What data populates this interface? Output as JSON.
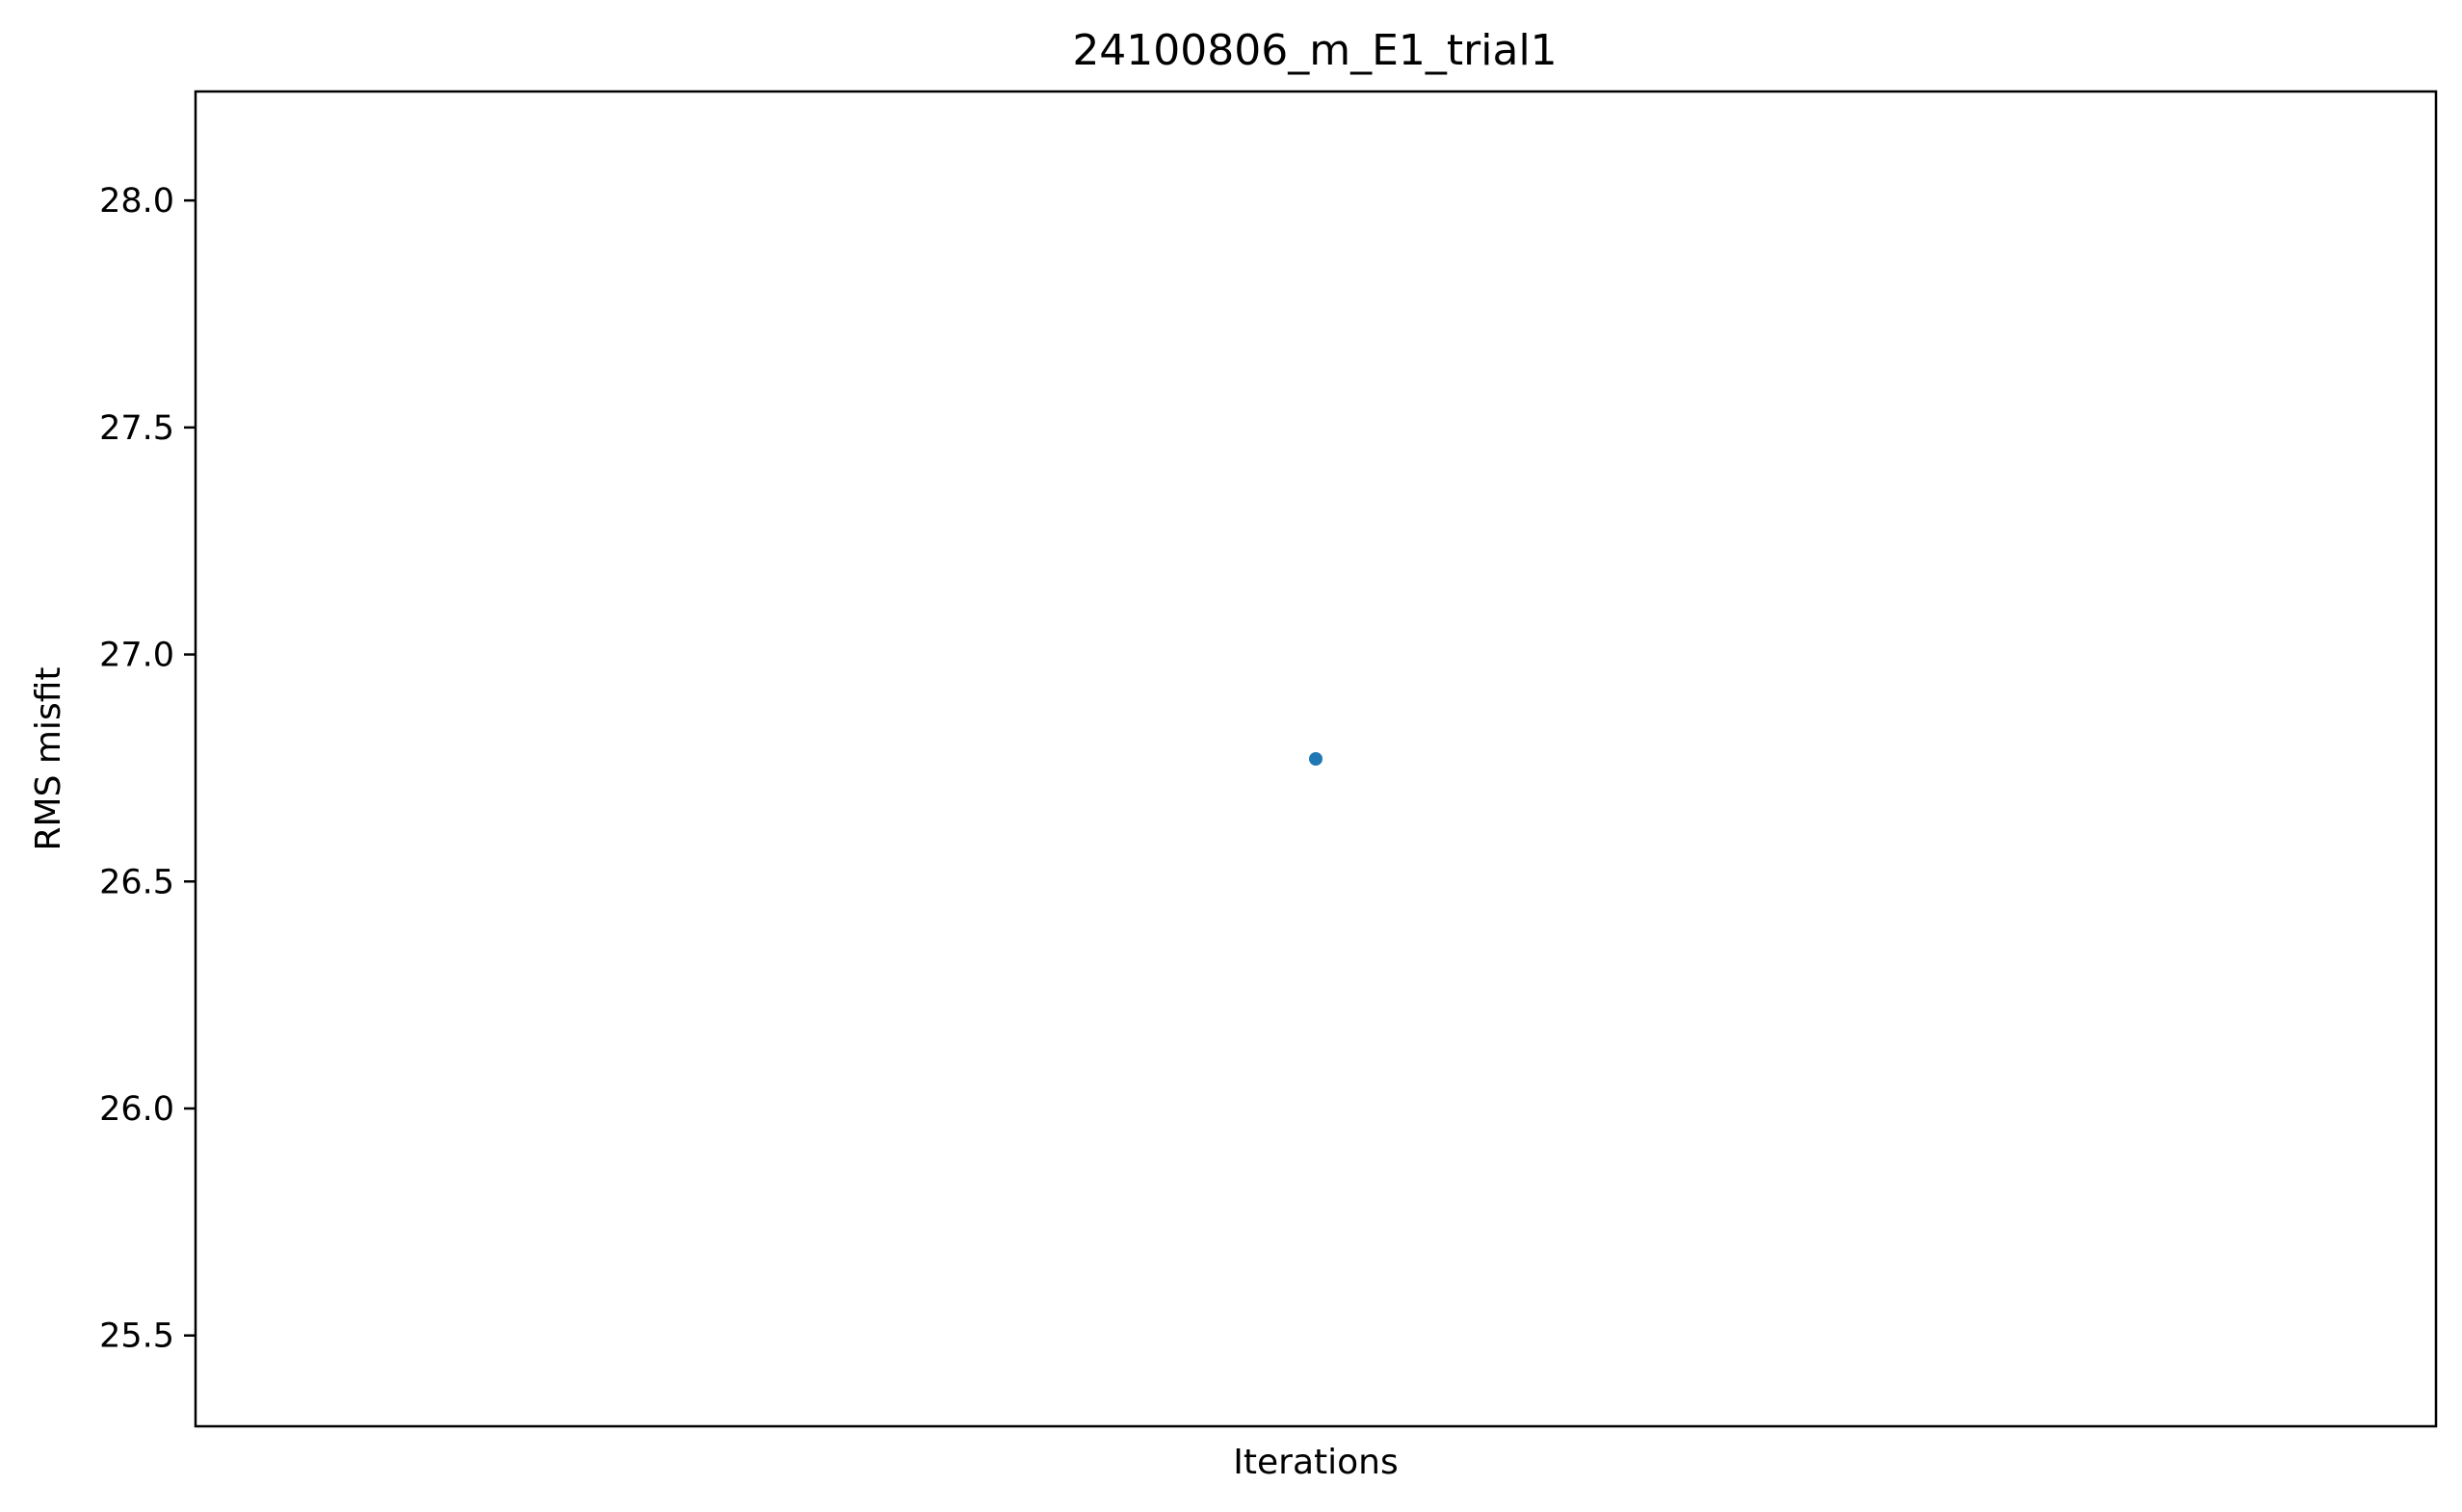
{
  "chart_data": {
    "type": "scatter",
    "title": "24100806_m_E1_trial1",
    "xlabel": "Iterations",
    "ylabel": "RMS misfit",
    "x_ticks_shown": false,
    "x": [
      1
    ],
    "y": [
      26.77
    ],
    "xlim": [
      0.5,
      1.5
    ],
    "ylim": [
      25.3,
      28.24
    ],
    "yticks": [
      25.5,
      26.0,
      26.5,
      27.0,
      27.5,
      28.0
    ],
    "ytick_labels": [
      "25.5",
      "26.0",
      "26.5",
      "27.0",
      "27.5",
      "28.0"
    ],
    "grid": false,
    "legend": false,
    "point_color": "#1f77b4"
  }
}
